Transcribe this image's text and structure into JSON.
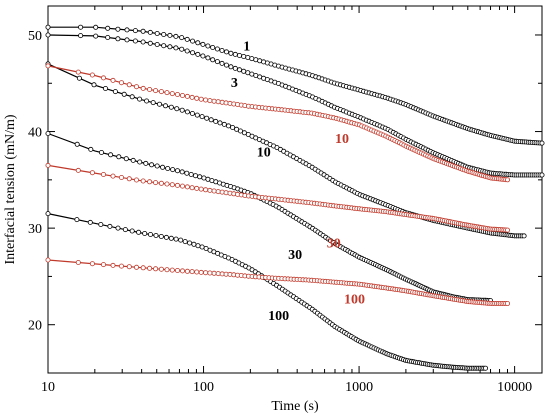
{
  "chart_data": {
    "type": "scatter",
    "xlabel": "Time (s)",
    "ylabel": "Interfacial tension (mN/m)",
    "xscale": "log",
    "xlim": [
      10,
      15000
    ],
    "ylim": [
      15,
      53
    ],
    "xticks": [
      {
        "value": 10,
        "label": "10"
      },
      {
        "value": 100,
        "label": "100"
      },
      {
        "value": 1000,
        "label": "1000"
      },
      {
        "value": 10000,
        "label": "10000"
      }
    ],
    "yticks": [
      {
        "value": 20,
        "label": "20"
      },
      {
        "value": 30,
        "label": "30"
      },
      {
        "value": 40,
        "label": "40"
      },
      {
        "value": 50,
        "label": "50"
      }
    ],
    "grid": false,
    "legend": "none",
    "series": [
      {
        "label": "1",
        "color": "#000000",
        "label_pos": {
          "x": 180,
          "y": 48.4
        },
        "x": [
          10,
          20,
          40,
          70,
          100,
          150,
          200,
          300,
          500,
          700,
          1000,
          1500,
          2000,
          3000,
          5000,
          7000,
          10000,
          15000
        ],
        "y": [
          50.8,
          50.8,
          50.4,
          49.8,
          49.0,
          48.1,
          47.6,
          46.8,
          45.8,
          45.0,
          44.3,
          43.5,
          42.8,
          41.6,
          40.3,
          39.6,
          39.0,
          38.8
        ]
      },
      {
        "label": "3",
        "color": "#000000",
        "label_pos": {
          "x": 150,
          "y": 44.6
        },
        "x": [
          10,
          20,
          40,
          70,
          100,
          150,
          200,
          300,
          500,
          700,
          1000,
          1500,
          2000,
          3000,
          5000,
          7000,
          10000,
          15000
        ],
        "y": [
          50.0,
          49.9,
          49.3,
          48.6,
          47.8,
          46.7,
          46.0,
          45.0,
          43.6,
          42.5,
          41.5,
          40.3,
          39.2,
          37.8,
          36.3,
          35.7,
          35.5,
          35.5
        ]
      },
      {
        "label": "10",
        "color": "#000000",
        "label_pos": {
          "x": 220,
          "y": 37.4
        },
        "x": [
          10,
          20,
          40,
          70,
          100,
          150,
          200,
          300,
          500,
          700,
          1000,
          1500,
          2000,
          3000,
          5000,
          7000,
          10000,
          11500
        ],
        "y": [
          47.0,
          44.8,
          43.3,
          42.3,
          41.5,
          40.5,
          39.6,
          38.3,
          36.3,
          34.8,
          33.5,
          32.4,
          31.6,
          30.8,
          30.0,
          29.5,
          29.2,
          29.2
        ]
      },
      {
        "label": "10",
        "color": "#c0392b",
        "label_pos": {
          "x": 700,
          "y": 38.8
        },
        "x": [
          10,
          20,
          40,
          70,
          100,
          150,
          200,
          300,
          500,
          700,
          1000,
          1500,
          2000,
          3000,
          5000,
          7000,
          9000
        ],
        "y": [
          46.8,
          45.8,
          44.5,
          43.8,
          43.3,
          42.9,
          42.6,
          42.3,
          41.9,
          41.4,
          40.7,
          39.5,
          38.5,
          37.2,
          35.9,
          35.2,
          35.0
        ]
      },
      {
        "label": "30",
        "color": "#000000",
        "label_pos": {
          "x": 350,
          "y": 26.8
        },
        "x": [
          10,
          20,
          40,
          70,
          100,
          150,
          200,
          300,
          500,
          700,
          1000,
          1500,
          2000,
          3000,
          4000,
          5000,
          7000
        ],
        "y": [
          39.8,
          38.0,
          36.8,
          35.9,
          35.2,
          34.3,
          33.6,
          32.2,
          30.0,
          28.4,
          27.0,
          25.7,
          24.7,
          23.4,
          22.9,
          22.6,
          22.5
        ]
      },
      {
        "label": "30",
        "color": "#c0392b",
        "label_pos": {
          "x": 620,
          "y": 28.0
        },
        "x": [
          10,
          20,
          40,
          70,
          100,
          150,
          200,
          300,
          500,
          700,
          1000,
          1500,
          2000,
          3000,
          5000,
          7000,
          9000
        ],
        "y": [
          36.5,
          35.7,
          34.9,
          34.4,
          34.0,
          33.6,
          33.3,
          33.0,
          32.6,
          32.3,
          32.0,
          31.7,
          31.4,
          31.0,
          30.3,
          29.9,
          29.8
        ]
      },
      {
        "label": "100",
        "color": "#000000",
        "label_pos": {
          "x": 260,
          "y": 20.5
        },
        "x": [
          10,
          20,
          40,
          70,
          100,
          150,
          200,
          300,
          500,
          700,
          1000,
          1500,
          2000,
          3000,
          4000,
          5000,
          6500
        ],
        "y": [
          31.5,
          30.5,
          29.5,
          28.8,
          28.0,
          26.8,
          25.8,
          24.0,
          21.6,
          19.8,
          18.3,
          17.0,
          16.3,
          15.8,
          15.6,
          15.5,
          15.5
        ]
      },
      {
        "label": "100",
        "color": "#c0392b",
        "label_pos": {
          "x": 800,
          "y": 22.2
        },
        "x": [
          10,
          20,
          40,
          70,
          100,
          150,
          200,
          300,
          500,
          700,
          1000,
          1500,
          2000,
          3000,
          5000,
          7000,
          9000
        ],
        "y": [
          26.7,
          26.3,
          25.9,
          25.6,
          25.4,
          25.2,
          25.0,
          24.8,
          24.6,
          24.4,
          24.2,
          23.8,
          23.5,
          23.0,
          22.4,
          22.2,
          22.2
        ]
      }
    ]
  }
}
